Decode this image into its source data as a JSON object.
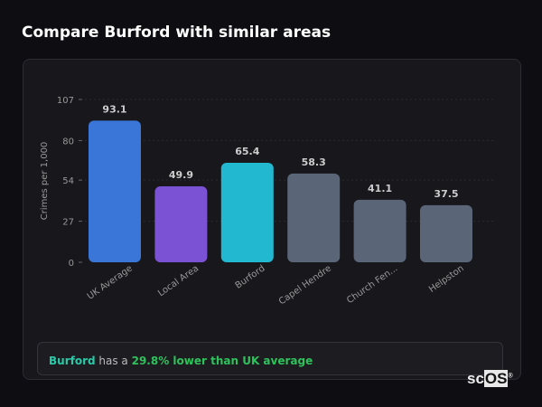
{
  "title": "Compare Burford with similar areas",
  "chart_data": {
    "type": "bar",
    "title": "",
    "xlabel": "",
    "ylabel": "Crimes per 1,000",
    "ylim": [
      0,
      107
    ],
    "yticks": [
      0,
      27,
      54,
      80,
      107
    ],
    "categories": [
      "UK Average",
      "Local Area",
      "Burford",
      "Capel Hendre",
      "Church Fen...",
      "Helpston"
    ],
    "values": [
      93.1,
      49.9,
      65.4,
      58.3,
      41.1,
      37.5
    ],
    "colors": [
      "#3a75d8",
      "#7b52d4",
      "#22b8cf",
      "#5a6678",
      "#5a6678",
      "#5a6678"
    ],
    "grid": true
  },
  "summary": {
    "area": "Burford",
    "middle": " has a ",
    "highlight": "29.8% lower than UK average"
  },
  "logo": {
    "text_a": "sc",
    "text_b": "OS",
    "mark": "®"
  }
}
